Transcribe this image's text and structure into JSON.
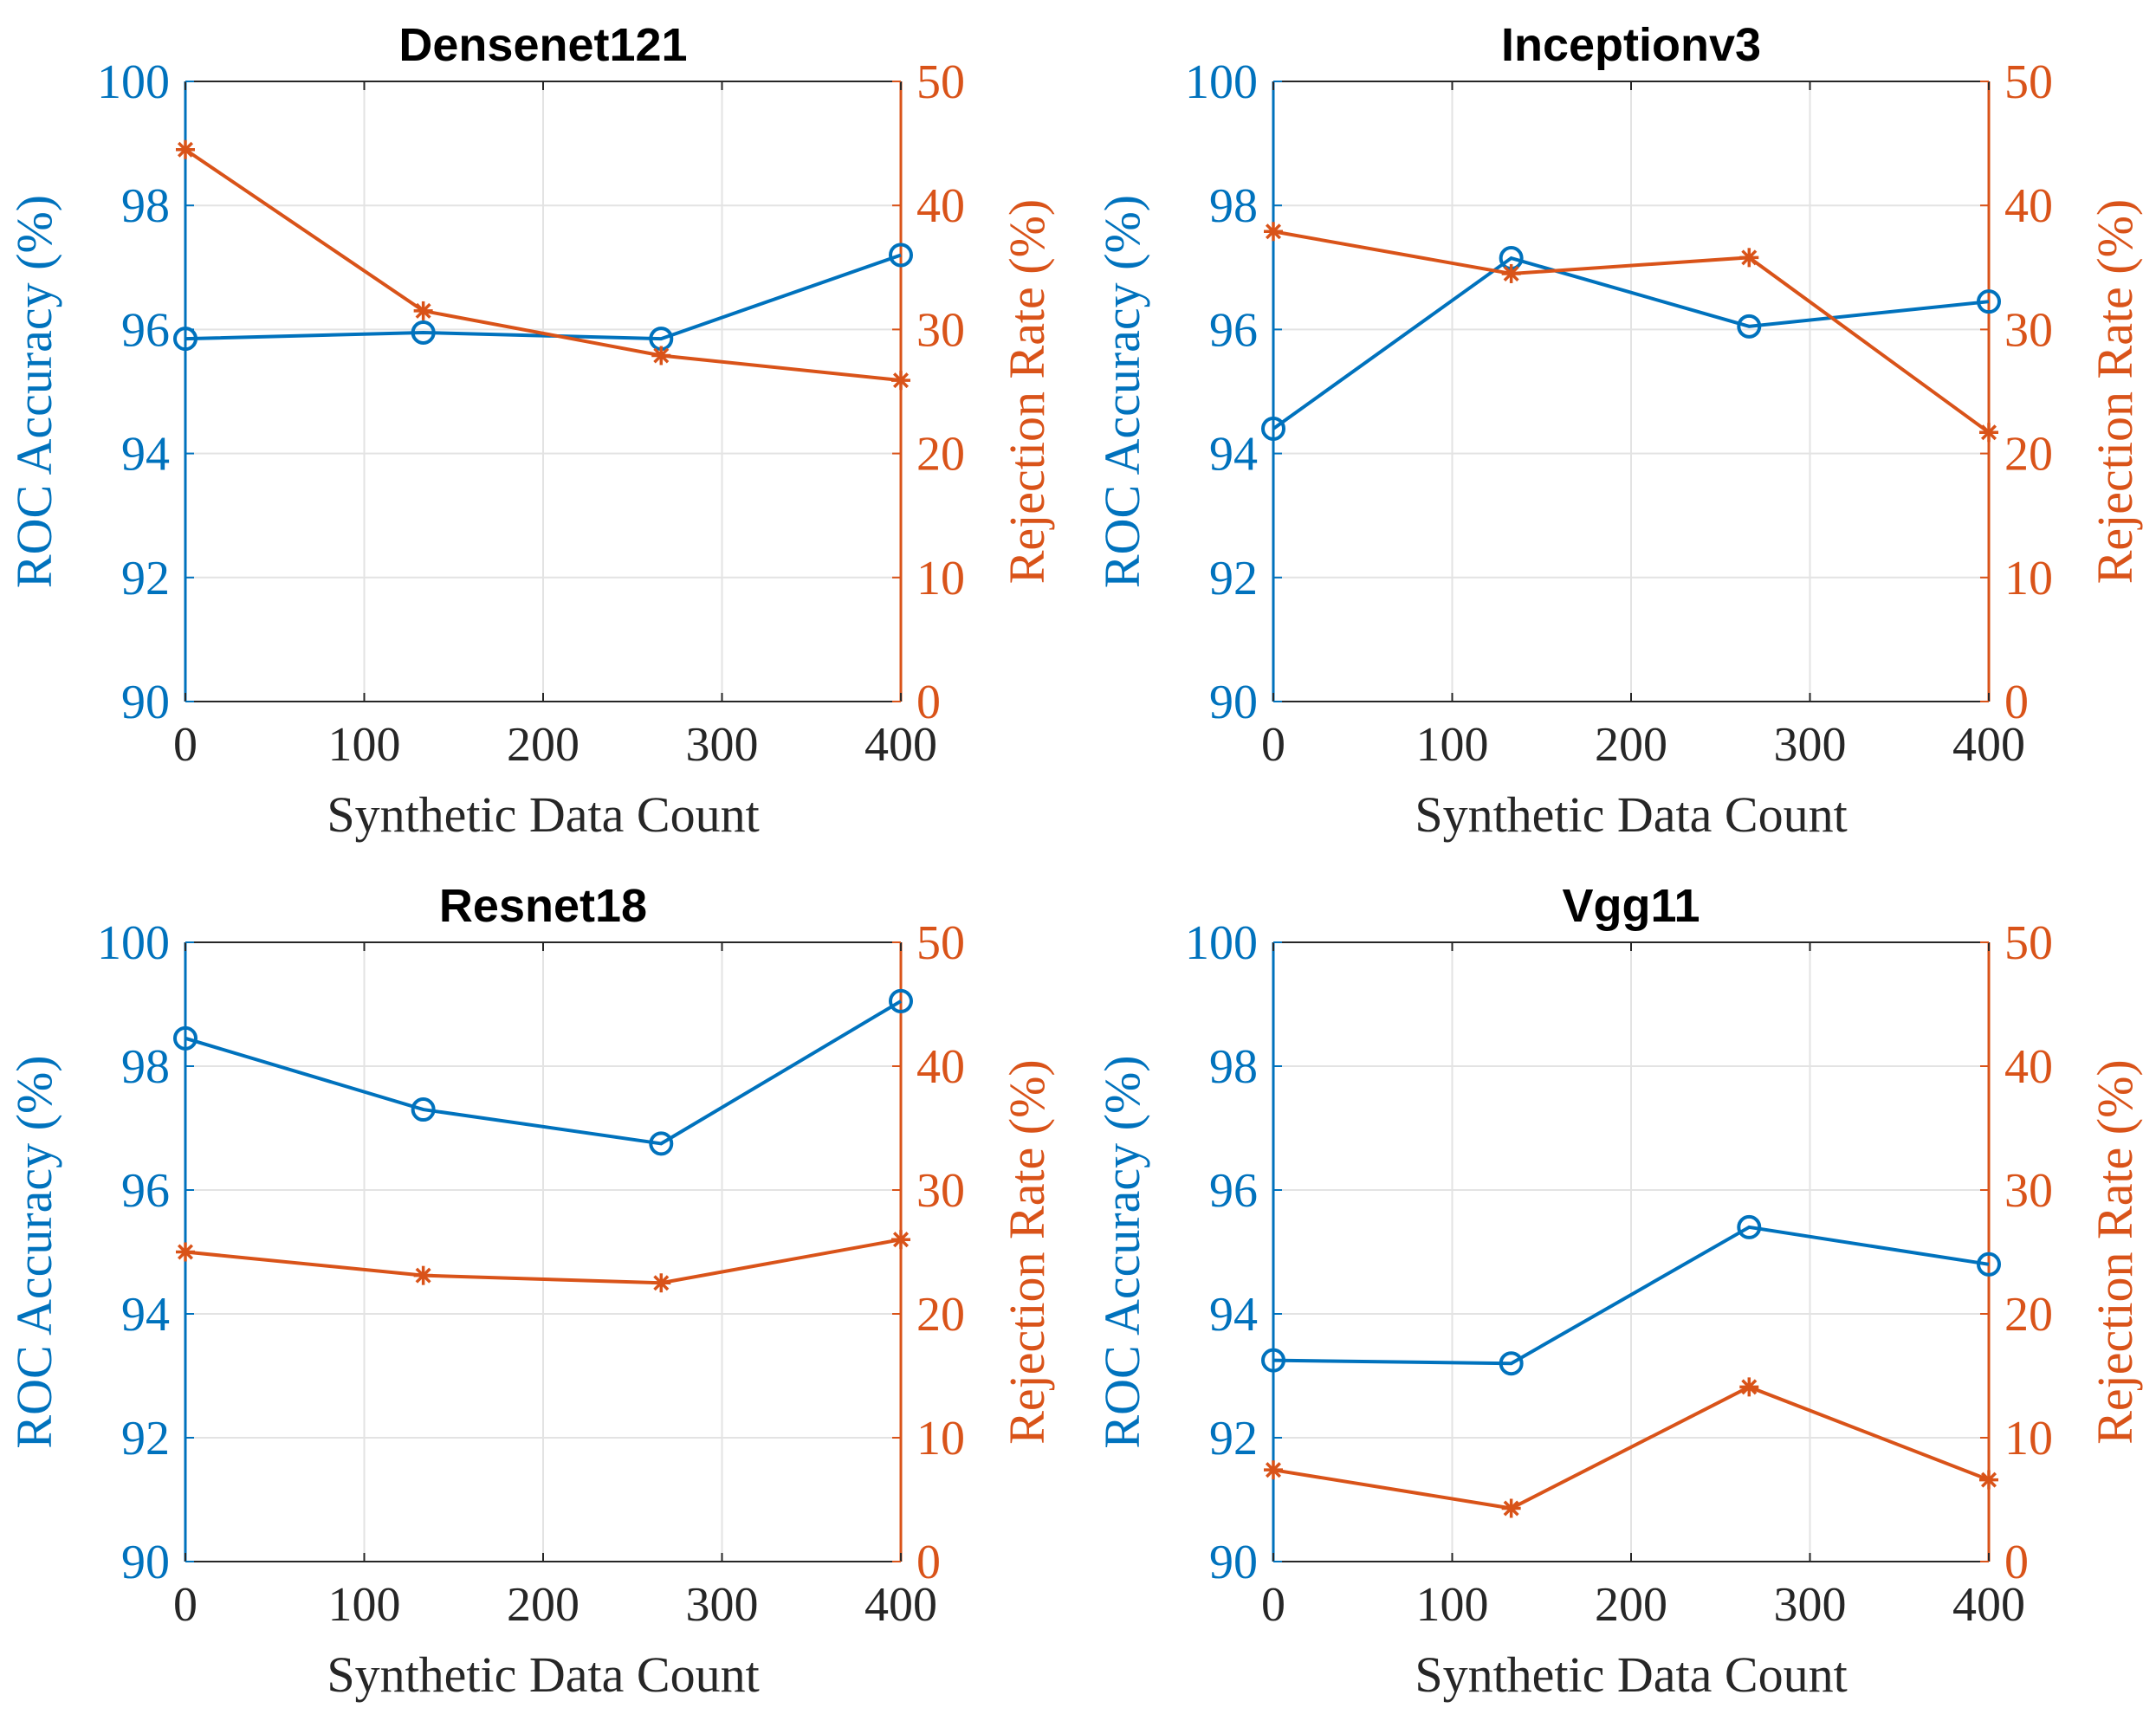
{
  "colors": {
    "accuracy": "#0072BD",
    "rejection": "#D95319",
    "grid": "#e3e3e3",
    "axis": "#262626"
  },
  "chart_data": [
    {
      "type": "line",
      "title": "Densenet121",
      "xlabel": "Synthetic Data Count",
      "ylabel_left": "ROC Accuracy (%)",
      "ylabel_right": "Rejection Rate (%)",
      "x": [
        0,
        133,
        266,
        400
      ],
      "xlim": [
        0,
        400
      ],
      "xticks": [
        0,
        100,
        200,
        300,
        400
      ],
      "ylim_left": [
        90,
        100
      ],
      "yticks_left": [
        90,
        92,
        94,
        96,
        98,
        100
      ],
      "ylim_right": [
        0,
        50
      ],
      "yticks_right": [
        0,
        10,
        20,
        30,
        40,
        50
      ],
      "grid": true,
      "series": [
        {
          "name": "ROC Accuracy",
          "axis": "left",
          "marker": "circle",
          "values": [
            95.85,
            95.95,
            95.85,
            97.2
          ]
        },
        {
          "name": "Rejection Rate",
          "axis": "right",
          "marker": "asterisk",
          "values": [
            44.5,
            31.5,
            27.9,
            25.9
          ]
        }
      ]
    },
    {
      "type": "line",
      "title": "Inceptionv3",
      "xlabel": "Synthetic Data Count",
      "ylabel_left": "ROC Accuracy (%)",
      "ylabel_right": "Rejection Rate (%)",
      "x": [
        0,
        133,
        266,
        400
      ],
      "xlim": [
        0,
        400
      ],
      "xticks": [
        0,
        100,
        200,
        300,
        400
      ],
      "ylim_left": [
        90,
        100
      ],
      "yticks_left": [
        90,
        92,
        94,
        96,
        98,
        100
      ],
      "ylim_right": [
        0,
        50
      ],
      "yticks_right": [
        0,
        10,
        20,
        30,
        40,
        50
      ],
      "grid": true,
      "series": [
        {
          "name": "ROC Accuracy",
          "axis": "left",
          "marker": "circle",
          "values": [
            94.4,
            97.15,
            96.05,
            96.45
          ]
        },
        {
          "name": "Rejection Rate",
          "axis": "right",
          "marker": "asterisk",
          "values": [
            37.9,
            34.5,
            35.8,
            21.7
          ]
        }
      ]
    },
    {
      "type": "line",
      "title": "Resnet18",
      "xlabel": "Synthetic Data Count",
      "ylabel_left": "ROC Accuracy (%)",
      "ylabel_right": "Rejection Rate (%)",
      "x": [
        0,
        133,
        266,
        400
      ],
      "xlim": [
        0,
        400
      ],
      "xticks": [
        0,
        100,
        200,
        300,
        400
      ],
      "ylim_left": [
        90,
        100
      ],
      "yticks_left": [
        90,
        92,
        94,
        96,
        98,
        100
      ],
      "ylim_right": [
        0,
        50
      ],
      "yticks_right": [
        0,
        10,
        20,
        30,
        40,
        50
      ],
      "grid": true,
      "series": [
        {
          "name": "ROC Accuracy",
          "axis": "left",
          "marker": "circle",
          "values": [
            98.45,
            97.3,
            96.75,
            99.05
          ]
        },
        {
          "name": "Rejection Rate",
          "axis": "right",
          "marker": "asterisk",
          "values": [
            25.0,
            23.1,
            22.5,
            26.0
          ]
        }
      ]
    },
    {
      "type": "line",
      "title": "Vgg11",
      "xlabel": "Synthetic Data Count",
      "ylabel_left": "ROC Accuracy (%)",
      "ylabel_right": "Rejection Rate (%)",
      "x": [
        0,
        133,
        266,
        400
      ],
      "xlim": [
        0,
        400
      ],
      "xticks": [
        0,
        100,
        200,
        300,
        400
      ],
      "ylim_left": [
        90,
        100
      ],
      "yticks_left": [
        90,
        92,
        94,
        96,
        98,
        100
      ],
      "ylim_right": [
        0,
        50
      ],
      "yticks_right": [
        0,
        10,
        20,
        30,
        40,
        50
      ],
      "grid": true,
      "series": [
        {
          "name": "ROC Accuracy",
          "axis": "left",
          "marker": "circle",
          "values": [
            93.25,
            93.2,
            95.4,
            94.8
          ]
        },
        {
          "name": "Rejection Rate",
          "axis": "right",
          "marker": "asterisk",
          "values": [
            7.4,
            4.3,
            14.1,
            6.6
          ]
        }
      ]
    }
  ]
}
